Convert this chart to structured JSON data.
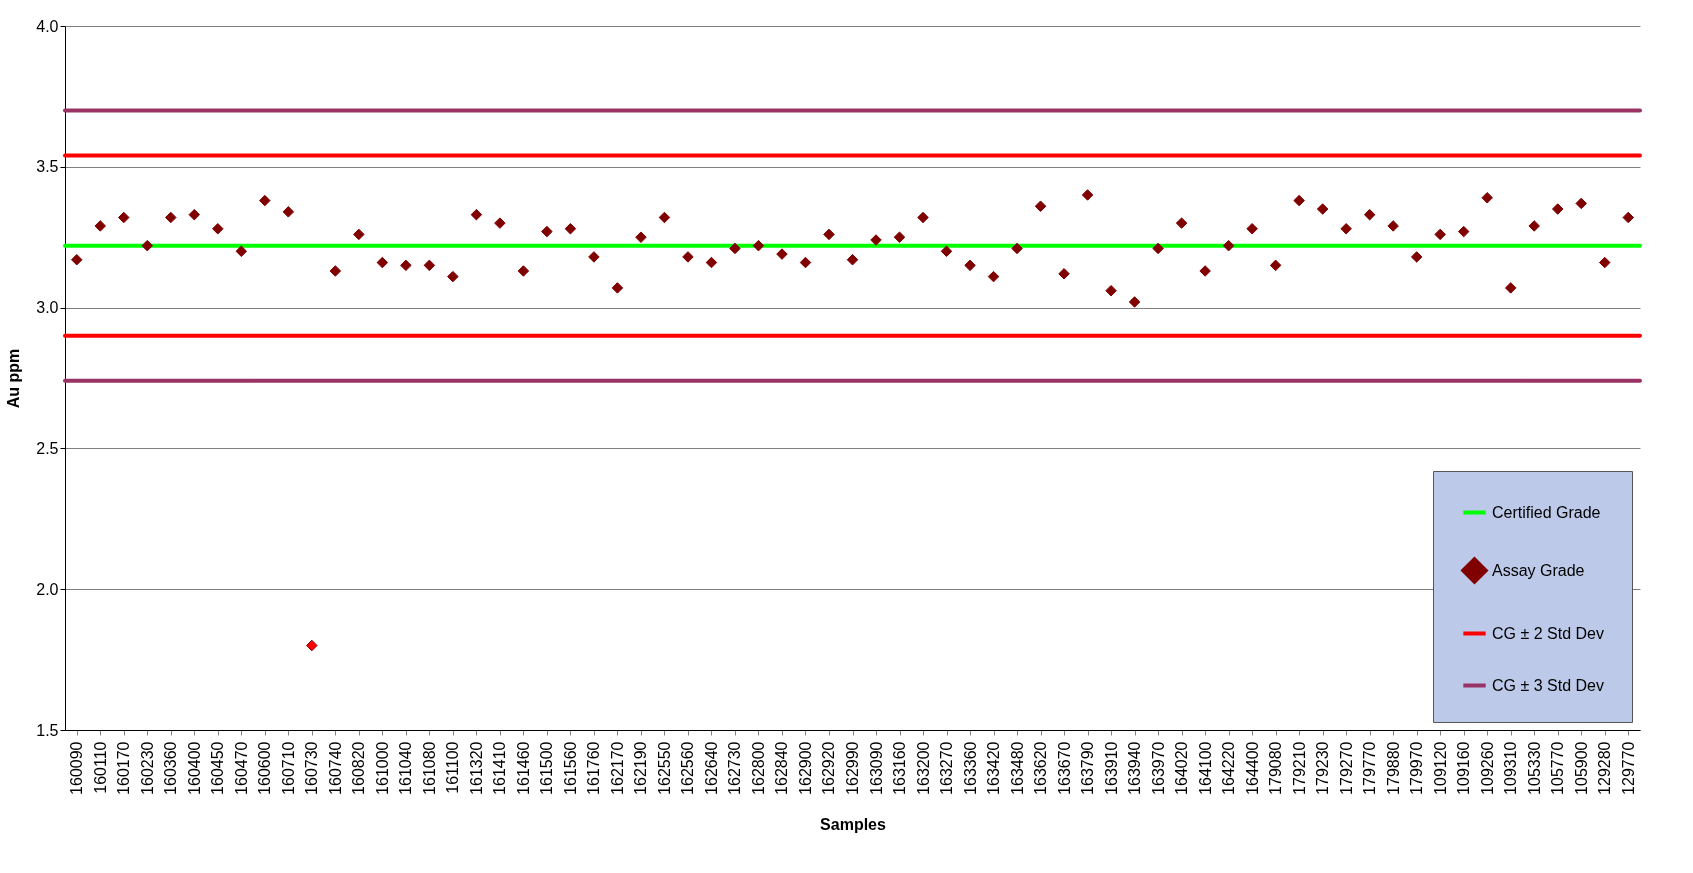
{
  "chart_data": {
    "type": "scatter",
    "xlabel": "Samples",
    "ylabel": "Au ppm",
    "categories": [
      "160090",
      "160110",
      "160170",
      "160230",
      "160360",
      "160400",
      "160450",
      "160470",
      "160600",
      "160710",
      "160730",
      "160740",
      "160820",
      "161000",
      "161040",
      "161080",
      "161100",
      "161320",
      "161410",
      "161460",
      "161500",
      "161560",
      "161760",
      "162170",
      "162190",
      "162550",
      "162560",
      "162640",
      "162730",
      "162800",
      "162840",
      "162900",
      "162920",
      "162990",
      "163090",
      "163160",
      "163200",
      "163270",
      "163360",
      "163420",
      "163480",
      "163620",
      "163670",
      "163790",
      "163910",
      "163940",
      "163970",
      "164020",
      "164100",
      "164220",
      "164400",
      "179080",
      "179210",
      "179230",
      "179270",
      "179770",
      "179880",
      "179970",
      "109120",
      "109160",
      "109260",
      "109310",
      "105330",
      "105770",
      "105900",
      "129280",
      "129770"
    ],
    "series": [
      {
        "name": "Assay Grade",
        "color": "#800000",
        "values": [
          3.17,
          3.29,
          3.32,
          3.22,
          3.32,
          3.33,
          3.28,
          3.2,
          3.38,
          3.34,
          1.8,
          3.13,
          3.26,
          3.16,
          3.15,
          3.15,
          3.11,
          3.33,
          3.3,
          3.13,
          3.27,
          3.28,
          3.18,
          3.07,
          3.25,
          3.32,
          3.18,
          3.16,
          3.21,
          3.22,
          3.19,
          3.16,
          3.26,
          3.17,
          3.24,
          3.25,
          3.32,
          3.2,
          3.15,
          3.11,
          3.21,
          3.36,
          3.12,
          3.4,
          3.06,
          3.02,
          3.21,
          3.3,
          3.13,
          3.22,
          3.28,
          3.15,
          3.38,
          3.35,
          3.28,
          3.33,
          3.29,
          3.18,
          3.26,
          3.27,
          3.39,
          3.07,
          3.29,
          3.35,
          3.37,
          3.16,
          3.32
        ],
        "colors": [
          "#800000",
          "#800000",
          "#800000",
          "#800000",
          "#800000",
          "#800000",
          "#800000",
          "#800000",
          "#800000",
          "#800000",
          "#ff0000",
          "#800000",
          "#800000",
          "#800000",
          "#800000",
          "#800000",
          "#800000",
          "#800000",
          "#800000",
          "#800000",
          "#800000",
          "#800000",
          "#800000",
          "#800000",
          "#800000",
          "#800000",
          "#800000",
          "#800000",
          "#800000",
          "#800000",
          "#800000",
          "#800000",
          "#800000",
          "#800000",
          "#800000",
          "#800000",
          "#800000",
          "#800000",
          "#800000",
          "#800000",
          "#800000",
          "#800000",
          "#800000",
          "#800000",
          "#800000",
          "#800000",
          "#800000",
          "#800000",
          "#800000",
          "#800000",
          "#800000",
          "#800000",
          "#800000",
          "#800000",
          "#800000",
          "#800000",
          "#800000",
          "#800000",
          "#800000",
          "#800000",
          "#800000",
          "#800000",
          "#800000",
          "#800000",
          "#800000",
          "#800000",
          "#800000"
        ]
      }
    ],
    "ref_lines": [
      {
        "axis": "y",
        "value": 3.22,
        "label": "Certified Grade",
        "color": "#00ff00"
      },
      {
        "axis": "y",
        "value": 3.54,
        "label": "CG ± 2 Std Dev",
        "color": "#ff0000"
      },
      {
        "axis": "y",
        "value": 2.9,
        "color": "#ff0000"
      },
      {
        "axis": "y",
        "value": 3.7,
        "label": "CG ± 3 Std Dev",
        "color": "#993366"
      },
      {
        "axis": "y",
        "value": 2.74,
        "color": "#993366"
      }
    ],
    "ylim": [
      1.5,
      4
    ],
    "yticks": [
      1.5,
      {
        "value": 2,
        "label": "2.0"
      },
      2.5,
      {
        "value": 3,
        "label": "3.0"
      },
      3.5,
      {
        "value": 4,
        "label": "4.0"
      }
    ],
    "grid": "y",
    "marker": "diamond",
    "legend": "bottom right"
  }
}
